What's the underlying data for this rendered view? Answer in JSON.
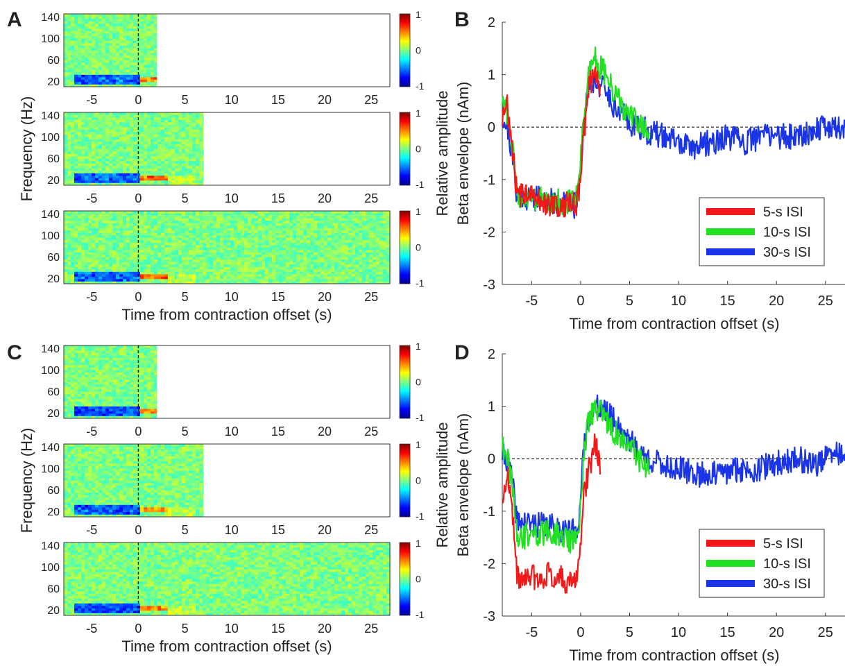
{
  "panel_letters": [
    "A",
    "B",
    "C",
    "D"
  ],
  "colorbar_ticks": [
    "1",
    "0",
    "-1"
  ],
  "chart_data": [
    {
      "panel": "A",
      "type": "heatmap",
      "subplots": 3,
      "data_end_s": [
        2,
        7,
        27
      ],
      "xlabel": "Time from contraction offset (s)",
      "ylabel": "Frequency (Hz)",
      "xlim": [
        -8,
        27
      ],
      "ylim": [
        10,
        145
      ],
      "xticks": [
        -5,
        0,
        5,
        10,
        15,
        20,
        25
      ],
      "yticks": [
        20,
        60,
        100,
        140
      ],
      "clim": [
        -1,
        1
      ],
      "colormap": "jet",
      "features": [
        {
          "name": "beta decrease",
          "time": [
            -7,
            0
          ],
          "freq": [
            12,
            30
          ],
          "value": -0.6
        },
        {
          "name": "beta rebound",
          "time": [
            0,
            3
          ],
          "freq": [
            15,
            25
          ],
          "value": 0.55
        }
      ],
      "vline_at": 0
    },
    {
      "panel": "B",
      "type": "line",
      "xlabel": "Time from contraction offset (s)",
      "ylabel": [
        "Relative amplitude",
        "Beta envelope (nAm)"
      ],
      "xlim": [
        -8,
        27
      ],
      "ylim": [
        -3,
        2
      ],
      "xticks": [
        -5,
        0,
        5,
        10,
        15,
        20,
        25
      ],
      "yticks": [
        -3,
        -2,
        -1,
        0,
        1,
        2
      ],
      "hline_at": 0,
      "legend": "lower-right",
      "series": [
        {
          "name": "30-s ISI",
          "color": "#1a35e8",
          "x": [
            -8,
            -7.5,
            -7,
            -6.5,
            -3,
            -0.5,
            -0.1,
            0.3,
            0.8,
            1.5,
            2.5,
            3.5,
            5,
            7,
            9,
            11,
            13,
            15,
            17,
            19,
            21,
            23,
            25,
            27
          ],
          "y": [
            0.2,
            0.0,
            -0.5,
            -1.3,
            -1.4,
            -1.5,
            -1.0,
            0.0,
            0.8,
            0.9,
            0.7,
            0.4,
            0.1,
            -0.1,
            -0.2,
            -0.4,
            -0.3,
            -0.2,
            -0.3,
            -0.1,
            -0.2,
            -0.1,
            0.0,
            0.0
          ]
        },
        {
          "name": "10-s ISI",
          "color": "#22e022",
          "x": [
            -8,
            -7.5,
            -7,
            -6.5,
            -3,
            -0.5,
            -0.1,
            0.3,
            0.8,
            1.5,
            2.5,
            3.5,
            5,
            7
          ],
          "y": [
            0.5,
            0.3,
            -0.3,
            -1.3,
            -1.4,
            -1.45,
            -0.9,
            0.2,
            1.0,
            1.3,
            1.0,
            0.6,
            0.2,
            -0.1
          ]
        },
        {
          "name": "5-s ISI",
          "color": "#f01818",
          "x": [
            -8,
            -7.5,
            -7,
            -6.5,
            -3,
            -0.5,
            -0.1,
            0.3,
            0.8,
            1.5,
            2
          ],
          "y": [
            0.2,
            0.4,
            -0.3,
            -1.3,
            -1.45,
            -1.5,
            -1.1,
            -0.2,
            0.8,
            1.0,
            0.6
          ]
        }
      ]
    },
    {
      "panel": "C",
      "type": "heatmap",
      "subplots": 3,
      "data_end_s": [
        2,
        7,
        27
      ],
      "xlabel": "Time from contraction offset (s)",
      "ylabel": "Frequency (Hz)",
      "xlim": [
        -8,
        27
      ],
      "ylim": [
        10,
        145
      ],
      "xticks": [
        -5,
        0,
        5,
        10,
        15,
        20,
        25
      ],
      "yticks": [
        20,
        60,
        100,
        140
      ],
      "clim": [
        -1,
        1
      ],
      "colormap": "jet",
      "features": [
        {
          "name": "beta decrease",
          "time": [
            -7,
            0
          ],
          "freq": [
            12,
            30
          ],
          "value": -0.65
        },
        {
          "name": "beta rebound",
          "time": [
            0,
            3
          ],
          "freq": [
            15,
            25
          ],
          "value": 0.5
        }
      ],
      "vline_at": 0
    },
    {
      "panel": "D",
      "type": "line",
      "xlabel": "Time from contraction offset (s)",
      "ylabel": [
        "Relative amplitude",
        "Beta envelope (nAm)"
      ],
      "xlim": [
        -8,
        27
      ],
      "ylim": [
        -3,
        2
      ],
      "xticks": [
        -5,
        0,
        5,
        10,
        15,
        20,
        25
      ],
      "yticks": [
        -3,
        -2,
        -1,
        0,
        1,
        2
      ],
      "hline_at": 0,
      "legend": "lower-right",
      "series": [
        {
          "name": "30-s ISI",
          "color": "#1a35e8",
          "x": [
            -8,
            -7.5,
            -7,
            -6.5,
            -3,
            -0.5,
            -0.1,
            0.4,
            1,
            2,
            3,
            4.5,
            6,
            8,
            10,
            12,
            14,
            16,
            18,
            20,
            22,
            24,
            26,
            27
          ],
          "y": [
            0.1,
            0.0,
            -0.4,
            -1.2,
            -1.3,
            -1.4,
            -1.0,
            0.3,
            0.9,
            1.0,
            0.8,
            0.5,
            0.1,
            -0.1,
            -0.2,
            -0.3,
            -0.3,
            -0.2,
            -0.2,
            -0.1,
            0.0,
            -0.1,
            0.1,
            0.1
          ]
        },
        {
          "name": "10-s ISI",
          "color": "#22e022",
          "x": [
            -8,
            -7.5,
            -7,
            -6.5,
            -3,
            -0.5,
            -0.1,
            0.4,
            1,
            2,
            3,
            4.5,
            6,
            7
          ],
          "y": [
            0.2,
            0.0,
            -0.5,
            -1.5,
            -1.4,
            -1.6,
            -1.1,
            0.2,
            0.9,
            0.9,
            0.6,
            0.3,
            0.0,
            -0.3
          ]
        },
        {
          "name": "5-s ISI",
          "color": "#f01818",
          "x": [
            -8,
            -7.5,
            -7,
            -6.5,
            -3,
            -0.5,
            -0.1,
            0.4,
            1,
            1.5,
            2
          ],
          "y": [
            -0.8,
            -0.3,
            -1.0,
            -2.3,
            -2.2,
            -2.4,
            -1.8,
            -0.6,
            -0.1,
            0.4,
            -0.3
          ]
        }
      ]
    }
  ]
}
